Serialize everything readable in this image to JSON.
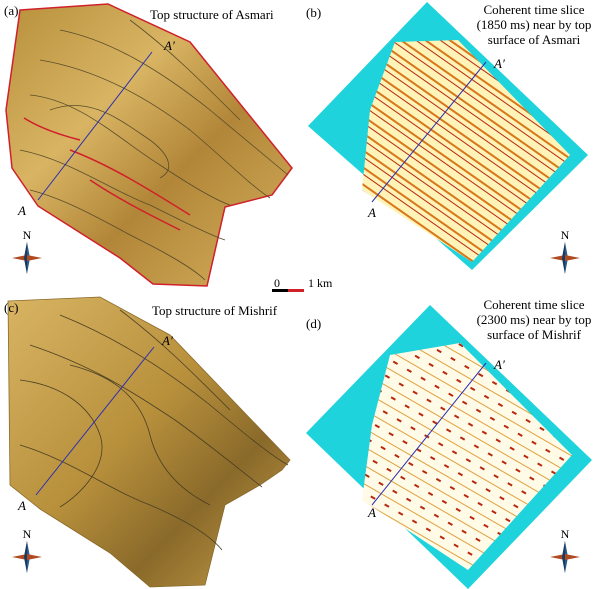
{
  "panels": [
    {
      "id": "a",
      "label": "(a)",
      "title_lines": [
        "Top structure of Asmari"
      ]
    },
    {
      "id": "b",
      "label": "(b)",
      "title_lines": [
        "Coherent time slice",
        "(1850 ms) near by top",
        "surface of Asmari"
      ]
    },
    {
      "id": "c",
      "label": "(c)",
      "title_lines": [
        "Top structure of Mishrif"
      ]
    },
    {
      "id": "d",
      "label": "(d)",
      "title_lines": [
        "Coherent time slice",
        "(2300 ms) near by top",
        "surface of Mishrif"
      ]
    }
  ],
  "profile": {
    "start": "A",
    "end": "A′"
  },
  "north_label": "N",
  "scale_bar": {
    "start": "0",
    "end": "1 km"
  },
  "colors": {
    "structure_map": "#c9a04a",
    "coherence_background": "#1fd3dc",
    "coherence_light": "#fff8d0",
    "coherence_dark": "#b8270e",
    "profile_line": "#2a2fb0",
    "boundary": "#d0202a"
  }
}
